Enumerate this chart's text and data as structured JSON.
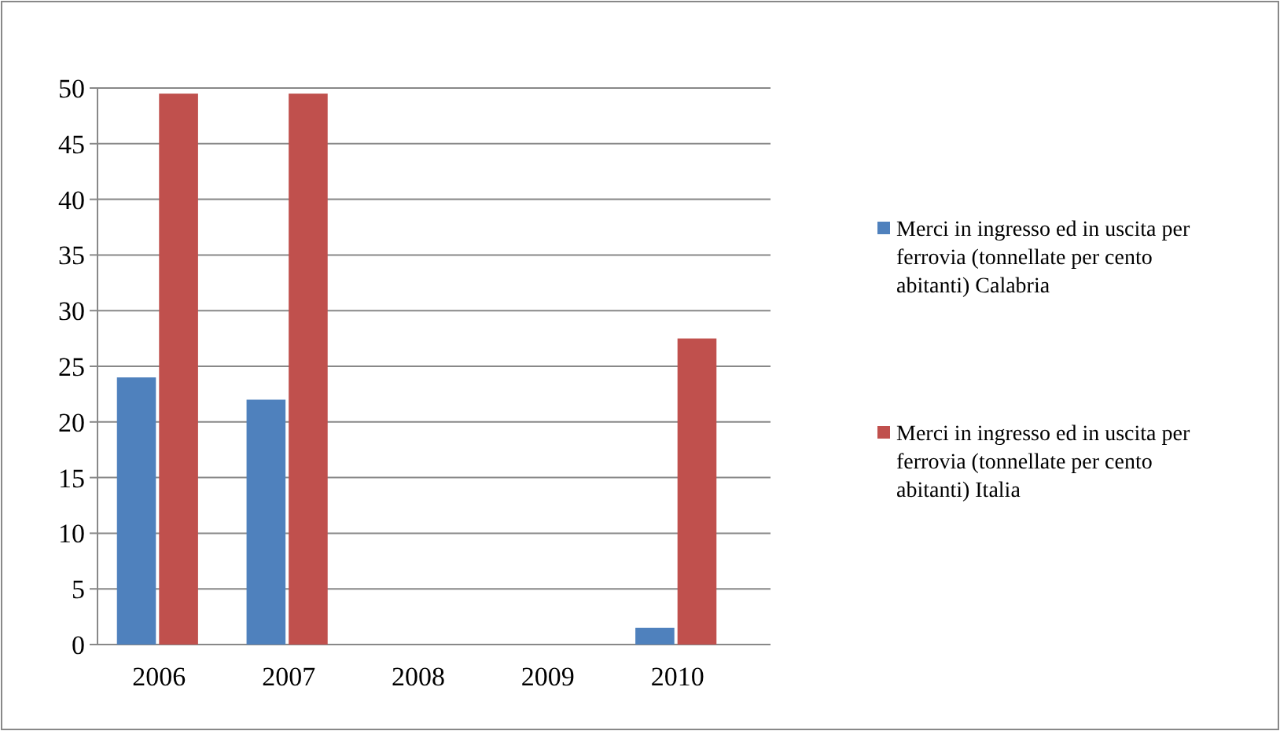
{
  "chart_data": {
    "type": "bar",
    "categories": [
      "2006",
      "2007",
      "2008",
      "2009",
      "2010"
    ],
    "series": [
      {
        "name": "Merci in ingresso ed in uscita per ferrovia (tonnellate per cento abitanti) Calabria",
        "color": "#4f81bd",
        "values": [
          24,
          22,
          null,
          null,
          1.5
        ]
      },
      {
        "name": "Merci in ingresso ed in uscita per ferrovia (tonnellate per cento abitanti) Italia",
        "color": "#c0504d",
        "values": [
          49.5,
          49.5,
          null,
          null,
          27.5
        ]
      }
    ],
    "ylim": [
      0,
      50
    ],
    "yticks": [
      0,
      5,
      10,
      15,
      20,
      25,
      30,
      35,
      40,
      45,
      50
    ],
    "grid": "y",
    "legend": "right"
  }
}
